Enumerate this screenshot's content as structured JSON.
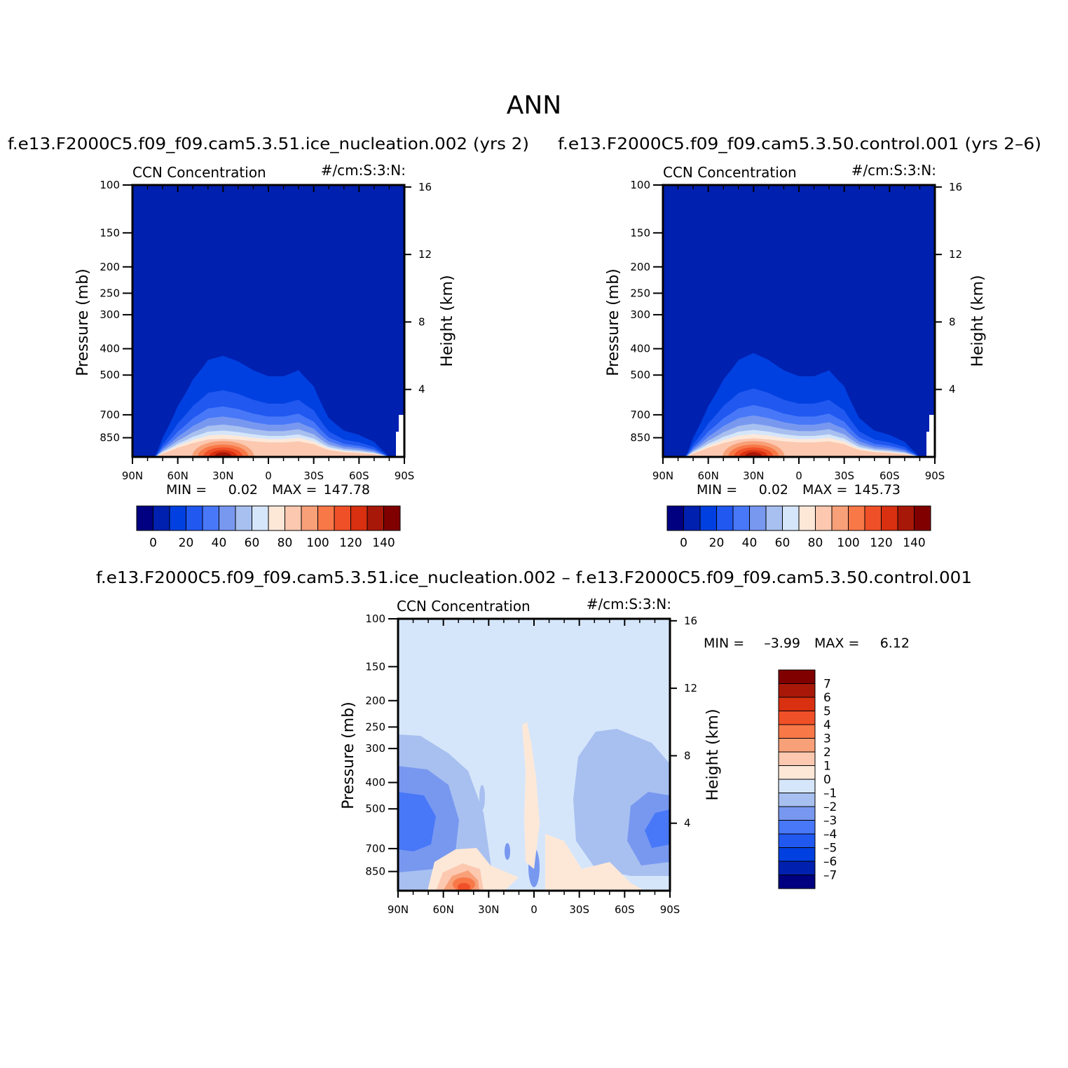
{
  "figure_title": "ANN",
  "colors": {
    "abs_levels": [
      "#000080",
      "#0020b0",
      "#0040e0",
      "#2058f0",
      "#4878f8",
      "#7898f0",
      "#a8c0f0",
      "#d6e6fa",
      "#fde8d8",
      "#fcc8b0",
      "#f8a078",
      "#f87848",
      "#f05028",
      "#d83010",
      "#a81808",
      "#800000"
    ],
    "diff_levels": [
      "#000080",
      "#0020b0",
      "#0040e0",
      "#2058f0",
      "#4878f8",
      "#7898f0",
      "#a8c0f0",
      "#d6e6fa",
      "#fde8d8",
      "#fcc8b0",
      "#f8a078",
      "#f87848",
      "#f05028",
      "#d83010",
      "#a81808",
      "#800000"
    ],
    "abs_background": "#0020b0",
    "diff_background": "#d6e6fa"
  },
  "chart_data": [
    {
      "type": "heatmap",
      "panel": "test",
      "title": "f.e13.F2000C5.f09_f09.cam5.3.51.ice_nucleation.002 (yrs 2)",
      "variable": "CCN Concentration",
      "units": "#/cm:S:3:N:",
      "ylabel": "Pressure (mb)",
      "ylabel_right": "Height (km)",
      "x_ticklabels": [
        "90N",
        "60N",
        "30N",
        "0",
        "30S",
        "60S",
        "90S"
      ],
      "y_ticklabels": [
        "100",
        "150",
        "200",
        "250",
        "300",
        "400",
        "500",
        "700",
        "850"
      ],
      "y_ticks_mb": [
        100,
        150,
        200,
        250,
        300,
        400,
        500,
        700,
        850
      ],
      "y_right_ticklabels": [
        "16",
        "12",
        "8",
        "4"
      ],
      "xlim": [
        90,
        -90
      ],
      "ylim_mb": [
        100,
        1000
      ],
      "y_scale": "log",
      "min_label": "MIN =",
      "min_value": "0.02",
      "max_label": "MAX =",
      "max_value": "147.78",
      "colorbar_ticks": [
        "0",
        "20",
        "40",
        "60",
        "80",
        "100",
        "120",
        "140"
      ],
      "colorbar_orientation": "horizontal",
      "fill_top_mb_profile": {
        "lat": [
          90,
          75,
          70,
          60,
          50,
          40,
          30,
          20,
          10,
          0,
          -10,
          -20,
          -30,
          -40,
          -50,
          -60,
          -70,
          -80,
          -90
        ],
        "p_mb": [
          1000,
          1000,
          850,
          650,
          520,
          440,
          425,
          445,
          480,
          505,
          505,
          480,
          550,
          720,
          800,
          830,
          880,
          1000,
          1000
        ]
      },
      "max_center": {
        "lat": 30,
        "p_mb": 950
      },
      "secondary_max_center": {
        "lat": -10,
        "p_mb": 980
      }
    },
    {
      "type": "heatmap",
      "panel": "control",
      "title": "f.e13.F2000C5.f09_f09.cam5.3.50.control.001 (yrs 2–6)",
      "variable": "CCN Concentration",
      "units": "#/cm:S:3:N:",
      "ylabel": "Pressure (mb)",
      "ylabel_right": "Height (km)",
      "x_ticklabels": [
        "90N",
        "60N",
        "30N",
        "0",
        "30S",
        "60S",
        "90S"
      ],
      "y_ticklabels": [
        "100",
        "150",
        "200",
        "250",
        "300",
        "400",
        "500",
        "700",
        "850"
      ],
      "y_ticks_mb": [
        100,
        150,
        200,
        250,
        300,
        400,
        500,
        700,
        850
      ],
      "y_right_ticklabels": [
        "16",
        "12",
        "8",
        "4"
      ],
      "xlim": [
        90,
        -90
      ],
      "ylim_mb": [
        100,
        1000
      ],
      "y_scale": "log",
      "min_label": "MIN =",
      "min_value": "0.02",
      "max_label": "MAX =",
      "max_value": "145.73",
      "colorbar_ticks": [
        "0",
        "20",
        "40",
        "60",
        "80",
        "100",
        "120",
        "140"
      ],
      "colorbar_orientation": "horizontal",
      "fill_top_mb_profile": {
        "lat": [
          90,
          75,
          70,
          60,
          50,
          40,
          30,
          20,
          10,
          0,
          -10,
          -20,
          -30,
          -40,
          -50,
          -60,
          -70,
          -80,
          -90
        ],
        "p_mb": [
          1000,
          1000,
          850,
          650,
          520,
          440,
          415,
          440,
          480,
          505,
          505,
          480,
          550,
          720,
          800,
          830,
          880,
          1000,
          1000
        ]
      },
      "max_center": {
        "lat": 30,
        "p_mb": 950
      },
      "secondary_max_center": {
        "lat": -10,
        "p_mb": 980
      }
    },
    {
      "type": "heatmap",
      "panel": "difference",
      "title": "f.e13.F2000C5.f09_f09.cam5.3.51.ice_nucleation.002 – f.e13.F2000C5.f09_f09.cam5.3.50.control.001",
      "variable": "CCN Concentration",
      "units": "#/cm:S:3:N:",
      "ylabel": "Pressure (mb)",
      "ylabel_right": "Height (km)",
      "x_ticklabels": [
        "90N",
        "60N",
        "30N",
        "0",
        "30S",
        "60S",
        "90S"
      ],
      "y_ticklabels": [
        "100",
        "150",
        "200",
        "250",
        "300",
        "400",
        "500",
        "700",
        "850"
      ],
      "y_ticks_mb": [
        100,
        150,
        200,
        250,
        300,
        400,
        500,
        700,
        850
      ],
      "y_right_ticklabels": [
        "16",
        "12",
        "8",
        "4"
      ],
      "xlim": [
        90,
        -90
      ],
      "ylim_mb": [
        100,
        1000
      ],
      "y_scale": "log",
      "min_label": "MIN =",
      "min_value": "–3.99",
      "max_label": "MAX =",
      "max_value": "6.12",
      "colorbar_ticks": [
        "7",
        "6",
        "5",
        "4",
        "3",
        "2",
        "1",
        "0",
        "–1",
        "–2",
        "–3",
        "–4",
        "–5",
        "–6",
        "–7"
      ],
      "colorbar_orientation": "vertical"
    }
  ]
}
